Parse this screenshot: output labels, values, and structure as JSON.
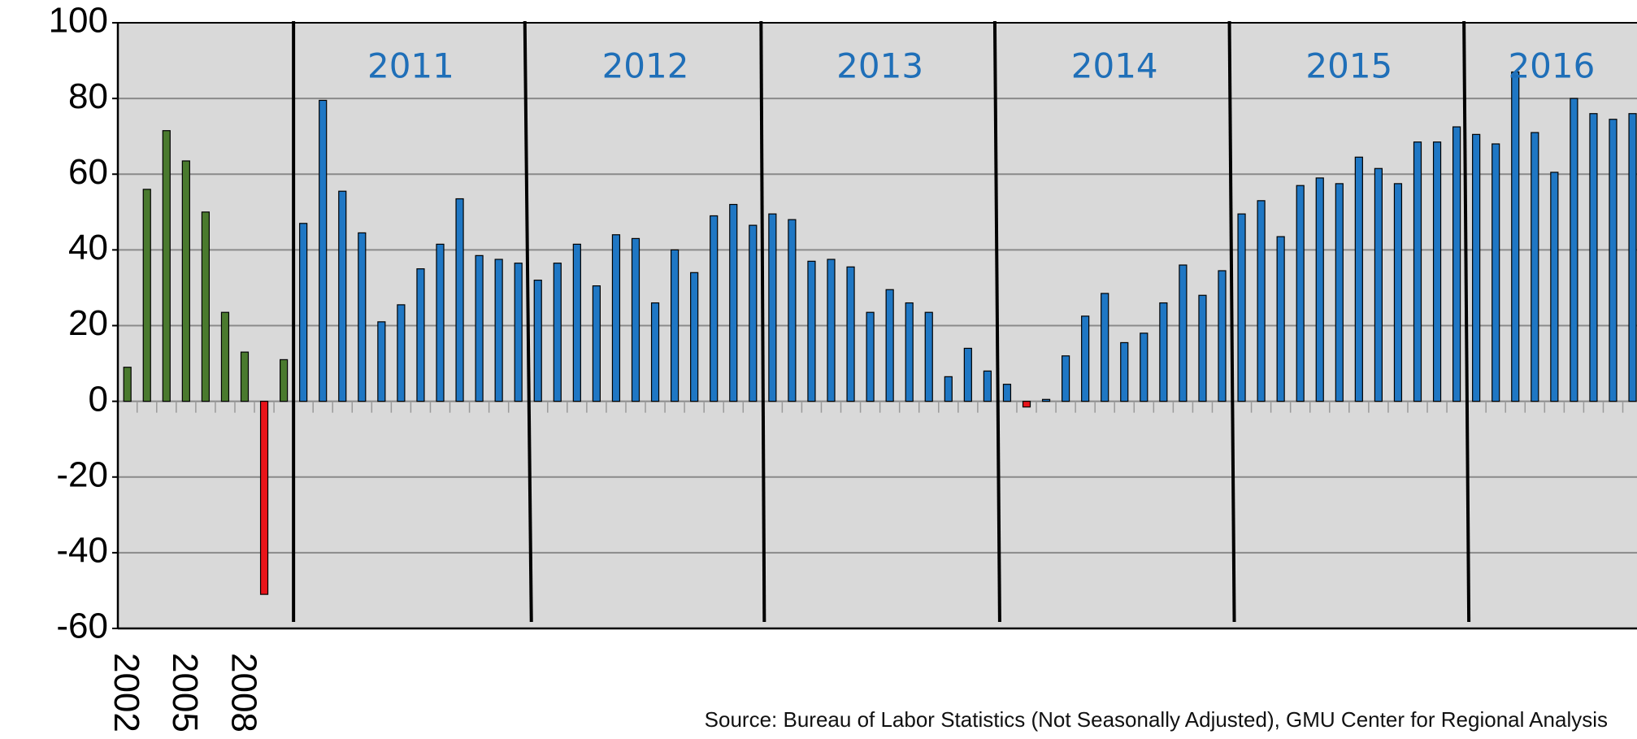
{
  "chart_data": {
    "type": "bar",
    "categories": [
      "2002",
      null,
      null,
      "2005",
      null,
      null,
      "2008",
      null,
      null,
      null,
      null,
      null,
      null,
      null,
      null,
      null,
      null,
      null,
      null,
      null,
      null,
      null,
      null,
      null,
      null,
      null,
      null,
      null,
      null,
      null,
      null,
      null,
      null,
      null,
      null,
      null,
      null,
      null,
      null,
      null,
      null,
      null,
      null,
      null,
      null,
      null,
      null,
      null,
      null,
      null,
      null,
      null,
      null,
      null,
      null,
      null,
      null,
      null,
      null,
      null,
      null,
      null,
      null,
      null,
      null,
      null,
      null,
      null,
      null,
      null,
      null,
      null,
      null,
      null,
      null,
      null,
      null,
      null
    ],
    "series": [
      {
        "color": "#4a7a2e",
        "values": [
          9,
          56,
          71.5,
          63.5,
          50,
          23.5,
          13,
          -51,
          11,
          null,
          null,
          null,
          null,
          null,
          null,
          null,
          null,
          null,
          null,
          null,
          null,
          null,
          null,
          null,
          null,
          null,
          null,
          null,
          null,
          null,
          null,
          null,
          null,
          null,
          null,
          null,
          null,
          null,
          null,
          null,
          null,
          null,
          null,
          null,
          null,
          null,
          null,
          null,
          null,
          null,
          null,
          null,
          null,
          null,
          null,
          null,
          null,
          null,
          null,
          null,
          null,
          null,
          null,
          null,
          null,
          null,
          null,
          null,
          null,
          null,
          null,
          null,
          null,
          null,
          null,
          null,
          null,
          null
        ]
      },
      {
        "color": "#1f77c4",
        "values": [
          null,
          null,
          null,
          null,
          null,
          null,
          null,
          null,
          null,
          47,
          79.5,
          55.5,
          44.5,
          21,
          25.5,
          35,
          41.5,
          53.5,
          38.5,
          37.5,
          36.5,
          32,
          36.5,
          41.5,
          30.5,
          44,
          43,
          26,
          40,
          34,
          49,
          52,
          46.5,
          49.5,
          48,
          37,
          37.5,
          35.5,
          23.5,
          29.5,
          26,
          23.5,
          6.5,
          14,
          8,
          4.5,
          -1.5,
          0.5,
          12,
          22.5,
          28.5,
          15.5,
          18,
          26,
          36,
          28,
          34.5,
          49.5,
          53,
          43.5,
          57,
          59,
          57.5,
          64.5,
          61.5,
          57.5,
          68.5,
          68.5,
          72.5,
          70.5,
          68,
          87,
          71,
          60.5,
          80,
          76,
          74.5,
          76
        ]
      }
    ],
    "negative_color": "#e8141a",
    "annotations": [
      "2011",
      "2012",
      "2013",
      "2014",
      "2015",
      "2016"
    ],
    "ylim": [
      -60,
      100
    ],
    "yticks": [
      -60,
      -40,
      -20,
      0,
      20,
      40,
      60,
      80,
      100
    ],
    "grid": true,
    "source": "Source: Bureau of Labor Statistics (Not Seasonally Adjusted), GMU Center for Regional Analysis"
  }
}
